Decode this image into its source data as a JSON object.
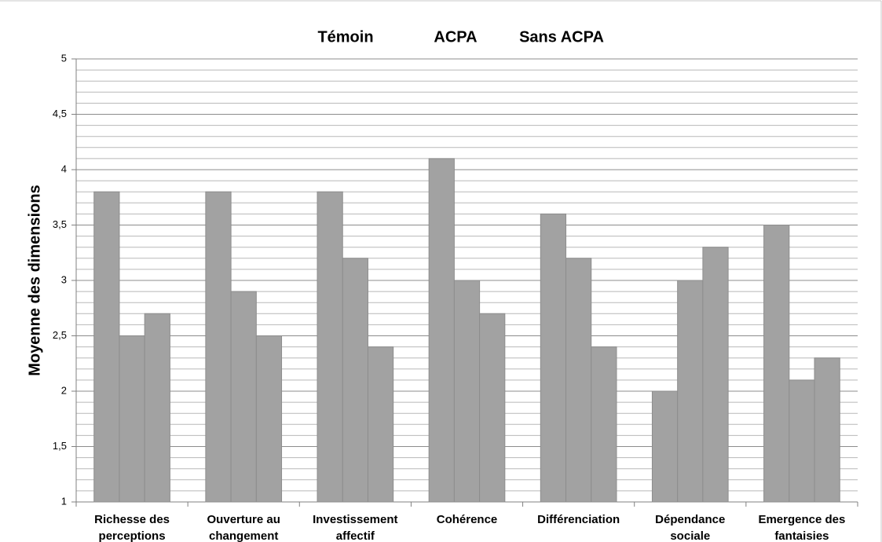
{
  "chart_data": {
    "type": "bar",
    "y_label": "Moyenne des dimensions",
    "categories": [
      "Richesse des perceptions",
      "Ouverture au changement",
      "Investissement affectif",
      "Cohérence",
      "Différenciation",
      "Dépendance sociale",
      "Emergence des fantaisies"
    ],
    "series": [
      {
        "name": "Témoin",
        "color": "#a2a2a2",
        "values": [
          3.8,
          3.8,
          3.8,
          4.1,
          3.6,
          2.0,
          3.5
        ]
      },
      {
        "name": "ACPA",
        "color": "#a2a2a2",
        "values": [
          2.5,
          2.9,
          3.2,
          3.0,
          3.2,
          3.0,
          2.1
        ]
      },
      {
        "name": "Sans ACPA",
        "color": "#a2a2a2",
        "values": [
          2.7,
          2.5,
          2.4,
          2.7,
          2.4,
          3.3,
          2.3
        ]
      }
    ],
    "ylim": [
      1,
      5
    ],
    "yticks": [
      1,
      {
        "value": 1.5,
        "label": "1,5"
      },
      2,
      {
        "value": 2.5,
        "label": "2,5"
      },
      3,
      {
        "value": 3.5,
        "label": "3,5"
      },
      4,
      {
        "value": 4.5,
        "label": "4,5"
      },
      5
    ],
    "grid": true,
    "legend": "top"
  }
}
